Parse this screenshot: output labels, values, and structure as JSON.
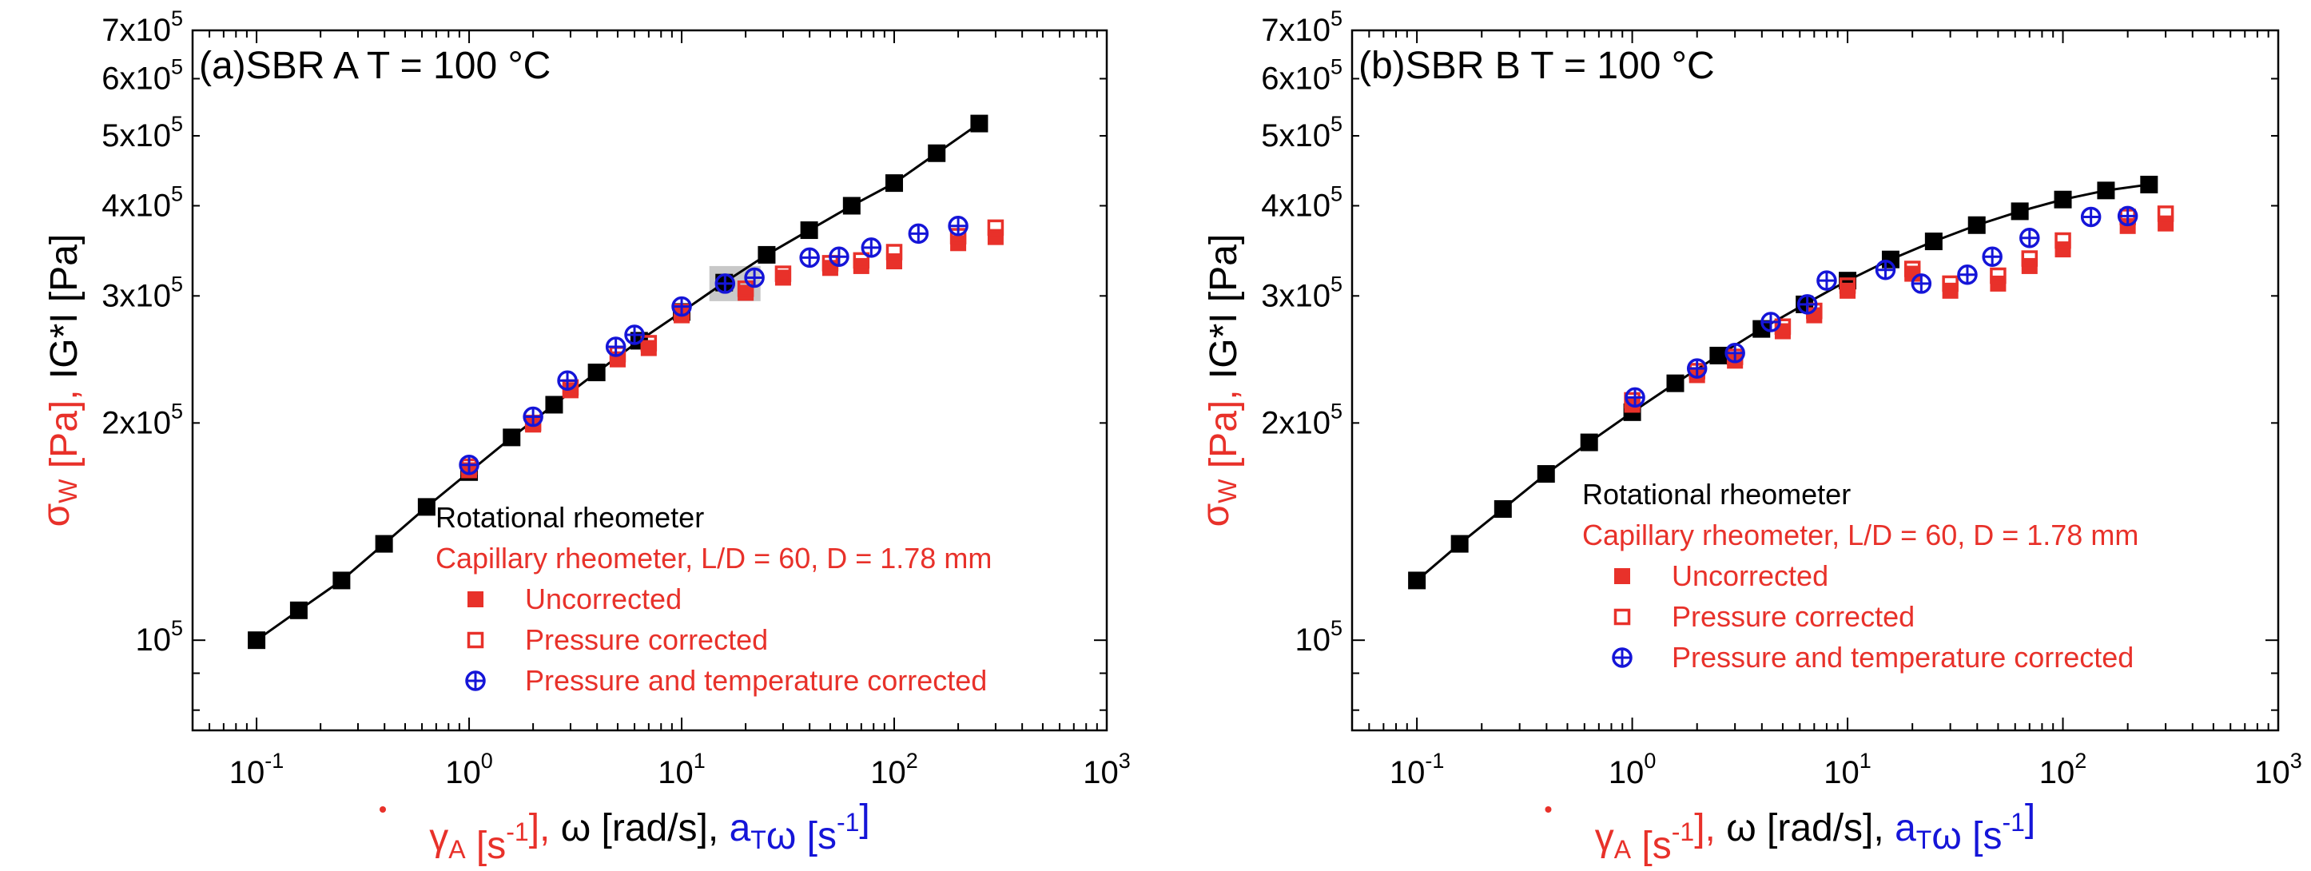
{
  "colors": {
    "rotational": "#000000",
    "capillary": "#e8312a",
    "corrected_pt": "#1515d8",
    "highlight": "#c8c8c8"
  },
  "axes_common": {
    "xlabel": {
      "parts": [
        {
          "text": "γ",
          "color": "#e8312a",
          "dot": true
        },
        {
          "text": "A",
          "color": "#e8312a",
          "sub": true
        },
        {
          "text": " [s",
          "color": "#e8312a"
        },
        {
          "text": "-1",
          "color": "#e8312a",
          "sup": true
        },
        {
          "text": "],",
          "color": "#e8312a"
        },
        {
          "text": " ω [rad/s],",
          "color": "#000000"
        },
        {
          "text": " a",
          "color": "#1515d8"
        },
        {
          "text": "T",
          "color": "#1515d8",
          "sub": true
        },
        {
          "text": "ω [s",
          "color": "#1515d8"
        },
        {
          "text": "-1",
          "color": "#1515d8",
          "sup": true
        },
        {
          "text": "]",
          "color": "#1515d8"
        }
      ]
    },
    "ylabel": {
      "parts": [
        {
          "text": "σ",
          "color": "#e8312a"
        },
        {
          "text": "W",
          "color": "#e8312a",
          "sub": true
        },
        {
          "text": " [Pa],",
          "color": "#e8312a"
        },
        {
          "text": " IG*I [Pa]",
          "color": "#000000"
        }
      ]
    },
    "x_ticks": [
      {
        "value": 0.1,
        "base": "10",
        "exp": "-1"
      },
      {
        "value": 1,
        "base": "10",
        "exp": "0"
      },
      {
        "value": 10,
        "base": "10",
        "exp": "1"
      },
      {
        "value": 100,
        "base": "10",
        "exp": "2"
      },
      {
        "value": 1000,
        "base": "10",
        "exp": "3"
      }
    ],
    "y_ticks": [
      {
        "value": 100000,
        "base": "10",
        "exp": "5"
      },
      {
        "value": 200000,
        "base": "2x10",
        "exp": "5"
      },
      {
        "value": 300000,
        "base": "3x10",
        "exp": "5"
      },
      {
        "value": 400000,
        "base": "4x10",
        "exp": "5"
      },
      {
        "value": 500000,
        "base": "5x10",
        "exp": "5"
      },
      {
        "value": 600000,
        "base": "6x10",
        "exp": "5"
      },
      {
        "value": 700000,
        "base": "7x10",
        "exp": "5"
      }
    ],
    "legend": {
      "title_rot": "Rotational rheometer",
      "title_cap": "Capillary rheometer, L/D = 60, D = 1.78 mm",
      "uncorrected": "Uncorrected",
      "pressure": "Pressure corrected",
      "pt": "Pressure and temperature corrected"
    }
  },
  "chart_data": [
    {
      "type": "scatter",
      "panel": "(a)",
      "title": "SBR A  T = 100 °C",
      "xlim": [
        0.05,
        1000
      ],
      "ylim": [
        75000,
        700000
      ],
      "x_scale": "log",
      "y_scale": "log",
      "series": [
        {
          "name": "Rotational rheometer",
          "marker": "filled-square-line",
          "x": [
            0.1,
            0.158,
            0.251,
            0.398,
            0.631,
            1.0,
            1.585,
            2.512,
            3.981,
            6.31,
            10.0,
            15.85,
            25.12,
            39.81,
            63.1,
            100.0,
            158.5,
            251.2
          ],
          "y": [
            100000,
            110000,
            121000,
            136000,
            153000,
            171000,
            191000,
            212000,
            235000,
            260000,
            285000,
            313000,
            342000,
            370000,
            400000,
            430000,
            473000,
            520000
          ]
        },
        {
          "name": "Uncorrected",
          "marker": "filled-square",
          "x": [
            1.0,
            2.0,
            3.0,
            5.0,
            7.0,
            10.0,
            20.0,
            30.0,
            50.0,
            70.0,
            100.0,
            200.0,
            300.0
          ],
          "y": [
            172000,
            199000,
            222000,
            245000,
            254000,
            282000,
            303000,
            318000,
            328000,
            330000,
            335000,
            355000,
            362000
          ]
        },
        {
          "name": "Pressure corrected",
          "marker": "open-square",
          "x": [
            1.0,
            2.0,
            3.0,
            5.0,
            7.0,
            10.0,
            20.0,
            30.0,
            50.0,
            70.0,
            100.0,
            200.0,
            300.0
          ],
          "y": [
            174000,
            200000,
            224000,
            249000,
            258000,
            285000,
            307000,
            322000,
            333000,
            336000,
            345000,
            363000,
            373000
          ]
        },
        {
          "name": "Pressure and temperature corrected",
          "marker": "circle-plus",
          "x": [
            1.0,
            2.0,
            2.9,
            4.9,
            6.0,
            10.0,
            16.0,
            22.0,
            40.0,
            55.0,
            78.0,
            130.0,
            200.0
          ],
          "y": [
            175000,
            204000,
            229000,
            255000,
            265000,
            290000,
            312000,
            318000,
            339000,
            340000,
            350000,
            366000,
            375000
          ]
        }
      ],
      "highlight_box": {
        "x": [
          13.5,
          23.5
        ],
        "y": [
          295000,
          330000
        ]
      }
    },
    {
      "type": "scatter",
      "panel": "(b)",
      "title": "SBR B  T = 100 °C",
      "xlim": [
        0.05,
        1000
      ],
      "ylim": [
        75000,
        700000
      ],
      "x_scale": "log",
      "y_scale": "log",
      "series": [
        {
          "name": "Rotational rheometer",
          "marker": "filled-square-line",
          "x": [
            0.1,
            0.158,
            0.251,
            0.398,
            0.631,
            1.0,
            1.585,
            2.512,
            3.981,
            6.31,
            10.0,
            15.85,
            25.12,
            39.81,
            63.1,
            100.0,
            158.5,
            251.2
          ],
          "y": [
            121000,
            136000,
            152000,
            170000,
            188000,
            207000,
            227000,
            248000,
            270000,
            292000,
            315000,
            337000,
            357000,
            376000,
            393000,
            408000,
            420000,
            428000
          ]
        },
        {
          "name": "Uncorrected",
          "marker": "filled-square",
          "x": [
            1.0,
            2.0,
            3.0,
            5.0,
            7.0,
            10.0,
            20.0,
            30.0,
            50.0,
            70.0,
            100.0,
            200.0,
            300.0
          ],
          "y": [
            212000,
            233000,
            244000,
            268000,
            282000,
            305000,
            322000,
            305000,
            312000,
            330000,
            348000,
            375000,
            378000
          ]
        },
        {
          "name": "Pressure corrected",
          "marker": "open-square",
          "x": [
            1.0,
            2.0,
            3.0,
            5.0,
            7.0,
            10.0,
            20.0,
            30.0,
            50.0,
            70.0,
            100.0,
            200.0,
            300.0
          ],
          "y": [
            215000,
            236000,
            247000,
            272000,
            286000,
            310000,
            327000,
            312000,
            320000,
            338000,
            358000,
            386000,
            390000
          ]
        },
        {
          "name": "Pressure and temperature corrected",
          "marker": "circle-plus",
          "x": [
            1.03,
            2.0,
            3.0,
            4.4,
            6.5,
            8.0,
            15.0,
            22.0,
            36.0,
            47.0,
            70.0,
            135.0,
            200.0
          ],
          "y": [
            217000,
            238000,
            250000,
            276000,
            292000,
            315000,
            326000,
            312000,
            321000,
            340000,
            361000,
            386000,
            387000
          ]
        }
      ],
      "highlight_box": null
    }
  ]
}
